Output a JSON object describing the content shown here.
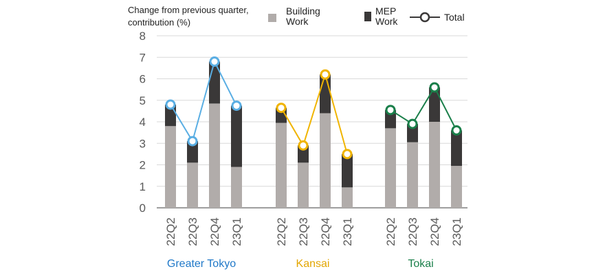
{
  "chart_data": {
    "type": "bar",
    "stacked": true,
    "y_title": "Change from previous quarter,\ncontribution (%)",
    "ylim": [
      0,
      8
    ],
    "yticks": [
      0,
      1,
      2,
      3,
      4,
      5,
      6,
      7,
      8
    ],
    "grid": true,
    "legend": {
      "building": "Building\nWork",
      "mep": "MEP\nWork",
      "total": "Total"
    },
    "colors": {
      "building": "#b1acaa",
      "mep": "#3a3838",
      "grid": "#d9d9d9",
      "axis": "#7f7f7f"
    },
    "groups": [
      {
        "name": "Greater Tokyo",
        "color": "#1f78c8",
        "line_color": "#5aaee3",
        "categories": [
          "22Q2",
          "22Q3",
          "22Q4",
          "23Q1"
        ],
        "building": [
          3.8,
          2.1,
          4.85,
          1.9
        ],
        "mep": [
          1.0,
          1.0,
          1.95,
          2.85
        ],
        "total": [
          4.8,
          3.1,
          6.8,
          4.75
        ]
      },
      {
        "name": "Kansai",
        "color": "#e3a600",
        "line_color": "#f0b400",
        "categories": [
          "22Q2",
          "22Q3",
          "22Q4",
          "23Q1"
        ],
        "building": [
          3.95,
          2.1,
          4.4,
          0.95
        ],
        "mep": [
          0.7,
          0.8,
          1.8,
          1.55
        ],
        "total": [
          4.65,
          2.9,
          6.2,
          2.5
        ]
      },
      {
        "name": "Tokai",
        "color": "#1a7f4a",
        "line_color": "#1a7f4a",
        "categories": [
          "22Q2",
          "22Q3",
          "22Q4",
          "23Q1"
        ],
        "building": [
          3.7,
          3.05,
          4.0,
          1.95
        ],
        "mep": [
          0.85,
          0.85,
          1.6,
          1.65
        ],
        "total": [
          4.55,
          3.9,
          5.6,
          3.6
        ]
      }
    ]
  }
}
